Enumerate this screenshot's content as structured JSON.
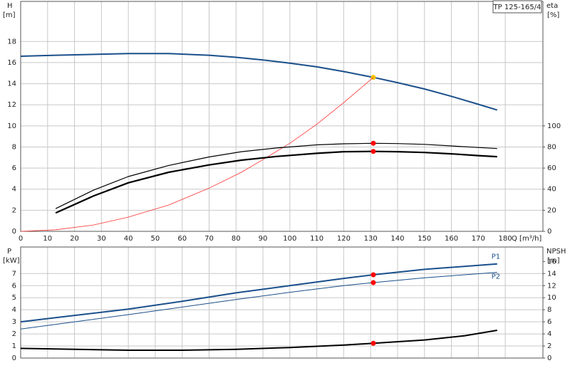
{
  "chart_data": [
    {
      "type": "line",
      "title": "TP 125-165/4",
      "y_label": "H",
      "y_unit": "[m]",
      "y2_label": "eta",
      "y2_unit": "[%]",
      "x_label": "Q [m³/h]",
      "xlim": [
        0,
        194
      ],
      "xticks": [
        0,
        10,
        20,
        30,
        40,
        50,
        60,
        70,
        80,
        90,
        100,
        110,
        120,
        130,
        140,
        150,
        160,
        170,
        180
      ],
      "ylim": [
        0,
        21.8
      ],
      "yticks": [
        0,
        2,
        4,
        6,
        8,
        10,
        12,
        14,
        16,
        18
      ],
      "y2lim": [
        0,
        218
      ],
      "y2ticks": [
        0,
        20,
        40,
        60,
        80,
        100
      ],
      "grid": true,
      "series": [
        {
          "color": "#1a4f8b",
          "width": 2,
          "x": [
            0,
            13,
            40,
            55,
            70,
            80,
            90,
            100,
            110,
            120,
            131,
            140,
            150,
            160,
            170,
            177
          ],
          "values": [
            16.6,
            16.7,
            16.85,
            16.85,
            16.7,
            16.5,
            16.25,
            15.95,
            15.6,
            15.15,
            14.6,
            14.1,
            13.5,
            12.8,
            12.05,
            11.5
          ],
          "marker_x": 131,
          "marker_value": 14.6,
          "marker_color": "#f5c400"
        },
        {
          "color": "#ff3030",
          "width": 0.8,
          "x": [
            0,
            13,
            27,
            40,
            55,
            70,
            82,
            90,
            100,
            110,
            120,
            131
          ],
          "values": [
            0,
            0.15,
            0.6,
            1.35,
            2.5,
            4.1,
            5.6,
            6.8,
            8.35,
            10.15,
            12.2,
            14.6
          ]
        },
        {
          "color": "#000000",
          "width": 1.2,
          "axis": "y2",
          "x": [
            13,
            27,
            40,
            55,
            70,
            82,
            95,
            110,
            120,
            131,
            140,
            150,
            160,
            170,
            177
          ],
          "values": [
            21.5,
            39,
            52,
            62.5,
            70.5,
            75.5,
            79,
            82,
            83,
            83.5,
            83.2,
            82.5,
            81,
            79.5,
            78.5
          ],
          "marker_x": 131,
          "marker_value": 83.5,
          "marker_color": "#ff0000"
        },
        {
          "color": "#000000",
          "width": 2.2,
          "axis": "y2",
          "x": [
            13,
            27,
            40,
            55,
            70,
            82,
            95,
            110,
            120,
            131,
            140,
            150,
            160,
            170,
            177
          ],
          "values": [
            17.5,
            33.5,
            46,
            56,
            63,
            67.5,
            71,
            74,
            75.5,
            75.8,
            75.5,
            74.8,
            73.5,
            71.8,
            70.8
          ],
          "marker_x": 131,
          "marker_value": 75.8,
          "marker_color": "#ff0000"
        }
      ]
    },
    {
      "type": "line",
      "y_label": "P",
      "y_unit": "[kW]",
      "y2_label": "NPSH",
      "y2_unit": "[m]",
      "xlim": [
        0,
        194
      ],
      "xticks": [
        0,
        10,
        20,
        30,
        40,
        50,
        60,
        70,
        80,
        90,
        100,
        110,
        120,
        130,
        140,
        150,
        160,
        170,
        180
      ],
      "ylim": [
        0,
        9.2
      ],
      "yticks": [
        0,
        1,
        2,
        3,
        4,
        5,
        6,
        7
      ],
      "y2lim": [
        0,
        18.4
      ],
      "y2ticks": [
        0,
        2,
        4,
        6,
        8,
        10,
        12,
        14,
        16
      ],
      "grid": true,
      "series": [
        {
          "name": "P1",
          "color": "#1a4f8b",
          "width": 2,
          "x": [
            0,
            13,
            40,
            60,
            80,
            100,
            120,
            131,
            150,
            177
          ],
          "values": [
            3.0,
            3.35,
            4.05,
            4.7,
            5.4,
            6.0,
            6.6,
            6.9,
            7.35,
            7.8
          ],
          "marker_x": 131,
          "marker_value": 6.9,
          "marker_color": "#ff0000"
        },
        {
          "name": "P2",
          "color": "#1a4f8b",
          "width": 1,
          "x": [
            0,
            40,
            80,
            100,
            120,
            131,
            150,
            177
          ],
          "values": [
            2.4,
            3.6,
            4.85,
            5.45,
            6.0,
            6.25,
            6.65,
            7.1
          ],
          "marker_x": 131,
          "marker_value": 6.25,
          "marker_color": "#ff0000"
        },
        {
          "color": "#000000",
          "width": 2,
          "axis": "y2",
          "x": [
            0,
            13,
            40,
            60,
            80,
            100,
            120,
            131,
            150,
            165,
            177
          ],
          "values": [
            1.6,
            1.5,
            1.3,
            1.3,
            1.45,
            1.75,
            2.15,
            2.45,
            3.0,
            3.7,
            4.6
          ],
          "marker_x": 131,
          "marker_value": 2.45,
          "marker_color": "#ff0000"
        }
      ]
    }
  ]
}
